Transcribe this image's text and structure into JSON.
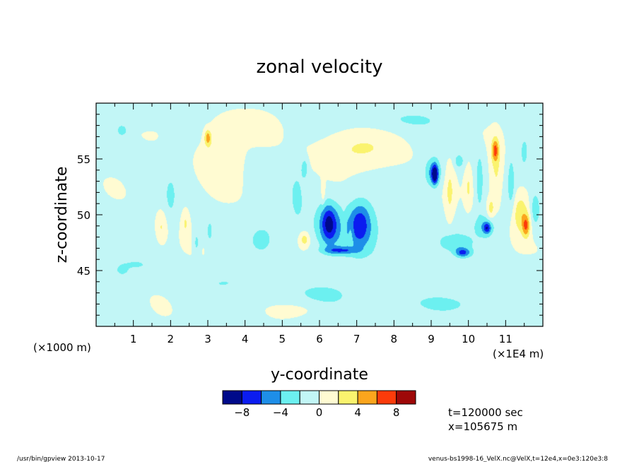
{
  "chart_data": {
    "type": "heatmap",
    "title": "zonal velocity",
    "xlabel": "y-coordinate",
    "ylabel": "z-coordinate",
    "x_unit_left": "(×1000 m)",
    "x_unit_right": "(×1E4 m)",
    "xlim": [
      0,
      12
    ],
    "ylim": [
      40,
      60
    ],
    "x_ticks": [
      "1",
      "2",
      "3",
      "4",
      "5",
      "6",
      "7",
      "8",
      "9",
      "10",
      "11"
    ],
    "x_tick_values": [
      1,
      2,
      3,
      4,
      5,
      6,
      7,
      8,
      9,
      10,
      11
    ],
    "y_ticks": [
      "45",
      "50",
      "55"
    ],
    "y_tick_values": [
      45,
      50,
      55
    ],
    "colorbar": {
      "levels": [
        -10,
        -8,
        -6,
        -4,
        -2,
        0,
        2,
        4,
        6,
        8,
        10
      ],
      "labels": [
        "−8",
        "−4",
        "0",
        "4",
        "8"
      ],
      "label_values": [
        -8,
        -4,
        0,
        4,
        8
      ],
      "colors": [
        "#000a8a",
        "#0b1cf0",
        "#1e8ee8",
        "#6cf0f0",
        "#c2f6f6",
        "#fffbd2",
        "#faf36e",
        "#fba51d",
        "#fc3b0a",
        "#9e0808"
      ]
    },
    "features": [
      {
        "x": 1.75,
        "z": 48.9,
        "rx": 0.14,
        "rz": 1.4,
        "v": 2.5
      },
      {
        "x": 2.0,
        "z": 51.5,
        "rx": 0.15,
        "rz": 2.0,
        "v": -1.5
      },
      {
        "x": 2.4,
        "z": 49.3,
        "rx": 0.11,
        "rz": 1.3,
        "v": 2.5
      },
      {
        "x": 2.7,
        "z": 47.5,
        "rx": 0.08,
        "rz": 1.0,
        "v": -2.5
      },
      {
        "x": 3.3,
        "z": 55.3,
        "rx": 0.55,
        "rz": 2.4,
        "v": 2.5
      },
      {
        "x": 3.0,
        "z": 56.9,
        "rx": 0.09,
        "rz": 0.7,
        "v": 5.0
      },
      {
        "x": 3.05,
        "z": 48.5,
        "rx": 0.08,
        "rz": 1.0,
        "v": -2.5
      },
      {
        "x": 4.5,
        "z": 48.0,
        "rx": 0.45,
        "rz": 1.8,
        "v": -1.5
      },
      {
        "x": 5.4,
        "z": 51.8,
        "rx": 0.18,
        "rz": 2.6,
        "v": -1.5
      },
      {
        "x": 5.6,
        "z": 47.8,
        "rx": 0.14,
        "rz": 0.7,
        "v": 3.5
      },
      {
        "x": 5.6,
        "z": 54.2,
        "rx": 0.09,
        "rz": 0.9,
        "v": -3.0
      },
      {
        "x": 6.1,
        "z": 52.0,
        "rx": 0.05,
        "rz": 1.0,
        "v": 2.5
      },
      {
        "x": 6.0,
        "z": 43.0,
        "rx": 1.8,
        "rz": 1.3,
        "v": -1.3
      },
      {
        "x": 7.0,
        "z": 55.8,
        "rx": 1.25,
        "rz": 1.7,
        "v": 2.5
      },
      {
        "x": 6.65,
        "z": 48.8,
        "rx": 1.0,
        "rz": 2.5,
        "v": -2.7
      },
      {
        "x": 6.25,
        "z": 49.2,
        "rx": 0.22,
        "rz": 1.7,
        "v": -6.5
      },
      {
        "x": 7.1,
        "z": 49.2,
        "rx": 0.28,
        "rz": 1.9,
        "v": -5.0
      },
      {
        "x": 6.55,
        "z": 46.8,
        "rx": 0.45,
        "rz": 0.35,
        "v": -4.5
      },
      {
        "x": 6.65,
        "z": 48.8,
        "rx": 0.07,
        "rz": 1.6,
        "v": 1.5
      },
      {
        "x": 6.85,
        "z": 48.3,
        "rx": 0.07,
        "rz": 1.2,
        "v": 1.5
      },
      {
        "x": 8.55,
        "z": 48.5,
        "rx": 0.15,
        "rz": 3.0,
        "v": -1.5
      },
      {
        "x": 9.05,
        "z": 53.8,
        "rx": 0.22,
        "rz": 1.3,
        "v": -4.5
      },
      {
        "x": 9.1,
        "z": 53.6,
        "rx": 0.08,
        "rz": 0.8,
        "v": -8.0
      },
      {
        "x": 9.5,
        "z": 52.0,
        "rx": 0.12,
        "rz": 2.5,
        "v": 2.5
      },
      {
        "x": 9.75,
        "z": 54.8,
        "rx": 0.12,
        "rz": 0.6,
        "v": -3.0
      },
      {
        "x": 9.6,
        "z": 47.5,
        "rx": 0.45,
        "rz": 0.8,
        "v": -3.0
      },
      {
        "x": 9.85,
        "z": 46.6,
        "rx": 0.2,
        "rz": 0.4,
        "v": -5.5
      },
      {
        "x": 10.0,
        "z": 52.5,
        "rx": 0.1,
        "rz": 1.8,
        "v": 2.5
      },
      {
        "x": 10.3,
        "z": 53.0,
        "rx": 0.09,
        "rz": 2.5,
        "v": -2.8
      },
      {
        "x": 10.45,
        "z": 49.0,
        "rx": 0.3,
        "rz": 1.0,
        "v": -3.0
      },
      {
        "x": 10.5,
        "z": 48.8,
        "rx": 0.1,
        "rz": 0.5,
        "v": -5.0
      },
      {
        "x": 10.6,
        "z": 50.5,
        "rx": 0.1,
        "rz": 1.0,
        "v": 3.0
      },
      {
        "x": 10.75,
        "z": 53.8,
        "rx": 0.18,
        "rz": 3.0,
        "v": 3.0
      },
      {
        "x": 10.72,
        "z": 55.8,
        "rx": 0.09,
        "rz": 1.0,
        "v": 5.5
      },
      {
        "x": 11.4,
        "z": 50.2,
        "rx": 0.22,
        "rz": 1.9,
        "v": 4.0
      },
      {
        "x": 11.55,
        "z": 49.0,
        "rx": 0.1,
        "rz": 1.0,
        "v": 5.5
      },
      {
        "x": 11.15,
        "z": 52.8,
        "rx": 0.09,
        "rz": 2.5,
        "v": -2.5
      },
      {
        "x": 11.8,
        "z": 50.5,
        "rx": 0.12,
        "rz": 1.5,
        "v": -3.0
      },
      {
        "x": 11.5,
        "z": 55.5,
        "rx": 0.12,
        "rz": 1.5,
        "v": -2.0
      },
      {
        "x": 0.8,
        "z": 58.5,
        "rx": 0.8,
        "rz": 0.7,
        "v": -1.5
      },
      {
        "x": 0.7,
        "z": 57.5,
        "rx": 0.12,
        "rz": 0.4,
        "v": -3.0
      },
      {
        "x": 3.5,
        "z": 44.0,
        "rx": 1.0,
        "rz": 1.0,
        "v": -1.3
      },
      {
        "x": 9.5,
        "z": 42.0,
        "rx": 2.0,
        "rz": 1.0,
        "v": -1.3
      },
      {
        "x": 11.5,
        "z": 44.0,
        "rx": 0.5,
        "rz": 1.5,
        "v": -1.3
      },
      {
        "x": 1.0,
        "z": 45.5,
        "rx": 0.5,
        "rz": 0.5,
        "v": -1.5
      },
      {
        "x": 0.7,
        "z": 45.0,
        "rx": 0.15,
        "rz": 0.4,
        "v": -2.5
      },
      {
        "x": 8.0,
        "z": 58.5,
        "rx": 1.8,
        "rz": 1.0,
        "v": -1.4
      },
      {
        "x": 4.0,
        "z": 58.0,
        "rx": 1.0,
        "rz": 1.2,
        "v": 1.2
      },
      {
        "x": 5.4,
        "z": 41.5,
        "rx": 0.6,
        "rz": 0.6,
        "v": 1.2
      }
    ]
  },
  "info": {
    "time": "t=120000 sec",
    "xpos": "x=105675 m"
  },
  "footer": {
    "left": "/usr/bin/gpview  2013-10-17",
    "right": "venus-bs1998-16_VelX.nc@VelX,t=12e4,x=0e3:120e3:8"
  }
}
